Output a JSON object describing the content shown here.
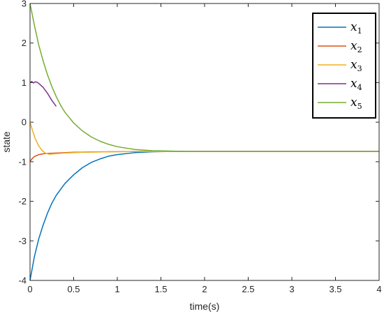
{
  "chart_data": {
    "type": "line",
    "xlabel": "time(s)",
    "ylabel": "state",
    "xlim": [
      0,
      4
    ],
    "ylim": [
      -4,
      3
    ],
    "x_ticks": [
      0,
      0.5,
      1,
      1.5,
      2,
      2.5,
      3,
      3.5,
      4
    ],
    "x_tick_labels": [
      "0",
      "0.5",
      "1",
      "1.5",
      "2",
      "2.5",
      "3",
      "3.5",
      "4"
    ],
    "y_ticks": [
      -4,
      -3,
      -2,
      -1,
      0,
      1,
      2,
      3
    ],
    "y_tick_labels": [
      "-4",
      "-3",
      "-2",
      "-1",
      "0",
      "1",
      "2",
      "3"
    ],
    "grid": false,
    "legend_position": "top-right",
    "series": [
      {
        "name": "x1",
        "legend_base": "x",
        "legend_sub": "1",
        "color": "#0072BD",
        "points": [
          [
            0,
            -4
          ],
          [
            0.05,
            -3.4
          ],
          [
            0.1,
            -2.95
          ],
          [
            0.15,
            -2.6
          ],
          [
            0.2,
            -2.3
          ],
          [
            0.25,
            -2.05
          ],
          [
            0.3,
            -1.85
          ],
          [
            0.4,
            -1.55
          ],
          [
            0.5,
            -1.33
          ],
          [
            0.6,
            -1.15
          ],
          [
            0.7,
            -1.02
          ],
          [
            0.8,
            -0.93
          ],
          [
            0.9,
            -0.86
          ],
          [
            1.0,
            -0.82
          ],
          [
            1.2,
            -0.77
          ],
          [
            1.4,
            -0.75
          ],
          [
            1.6,
            -0.74
          ],
          [
            1.8,
            -0.74
          ],
          [
            2.0,
            -0.74
          ],
          [
            4.0,
            -0.74
          ]
        ]
      },
      {
        "name": "x2",
        "legend_base": "x",
        "legend_sub": "2",
        "color": "#D95319",
        "points": [
          [
            0,
            -1
          ],
          [
            0.02,
            -0.93
          ],
          [
            0.05,
            -0.87
          ],
          [
            0.1,
            -0.82
          ],
          [
            0.15,
            -0.8
          ],
          [
            0.2,
            -0.79
          ],
          [
            0.3,
            -0.78
          ],
          [
            0.5,
            -0.76
          ],
          [
            0.8,
            -0.75
          ],
          [
            1.2,
            -0.74
          ],
          [
            4.0,
            -0.74
          ]
        ]
      },
      {
        "name": "x3",
        "legend_base": "x",
        "legend_sub": "3",
        "color": "#EDB120",
        "points": [
          [
            0,
            0
          ],
          [
            0.03,
            -0.22
          ],
          [
            0.06,
            -0.42
          ],
          [
            0.1,
            -0.6
          ],
          [
            0.14,
            -0.72
          ],
          [
            0.18,
            -0.79
          ],
          [
            0.22,
            -0.81
          ],
          [
            0.28,
            -0.8
          ],
          [
            0.4,
            -0.78
          ],
          [
            0.6,
            -0.76
          ],
          [
            0.9,
            -0.75
          ],
          [
            1.2,
            -0.74
          ],
          [
            4.0,
            -0.74
          ]
        ]
      },
      {
        "name": "x4",
        "legend_base": "x",
        "legend_sub": "4",
        "color": "#7E2F8E",
        "points": [
          [
            0,
            1
          ],
          [
            0.02,
            1.03
          ],
          [
            0.04,
            0.99
          ],
          [
            0.06,
            1.02
          ],
          [
            0.08,
            1.01
          ],
          [
            0.1,
            0.98
          ],
          [
            0.15,
            0.88
          ],
          [
            0.2,
            0.73
          ],
          [
            0.25,
            0.55
          ],
          [
            0.3,
            0.4
          ]
        ]
      },
      {
        "name": "x5",
        "legend_base": "x",
        "legend_sub": "5",
        "color": "#77AC30",
        "points": [
          [
            0,
            3
          ],
          [
            0.05,
            2.45
          ],
          [
            0.1,
            1.95
          ],
          [
            0.15,
            1.55
          ],
          [
            0.2,
            1.2
          ],
          [
            0.25,
            0.9
          ],
          [
            0.3,
            0.65
          ],
          [
            0.35,
            0.43
          ],
          [
            0.4,
            0.25
          ],
          [
            0.5,
            -0.02
          ],
          [
            0.6,
            -0.22
          ],
          [
            0.7,
            -0.37
          ],
          [
            0.8,
            -0.48
          ],
          [
            0.9,
            -0.56
          ],
          [
            1.0,
            -0.62
          ],
          [
            1.2,
            -0.69
          ],
          [
            1.4,
            -0.72
          ],
          [
            1.6,
            -0.73
          ],
          [
            1.8,
            -0.74
          ],
          [
            2.0,
            -0.74
          ],
          [
            4.0,
            -0.74
          ]
        ]
      }
    ]
  }
}
